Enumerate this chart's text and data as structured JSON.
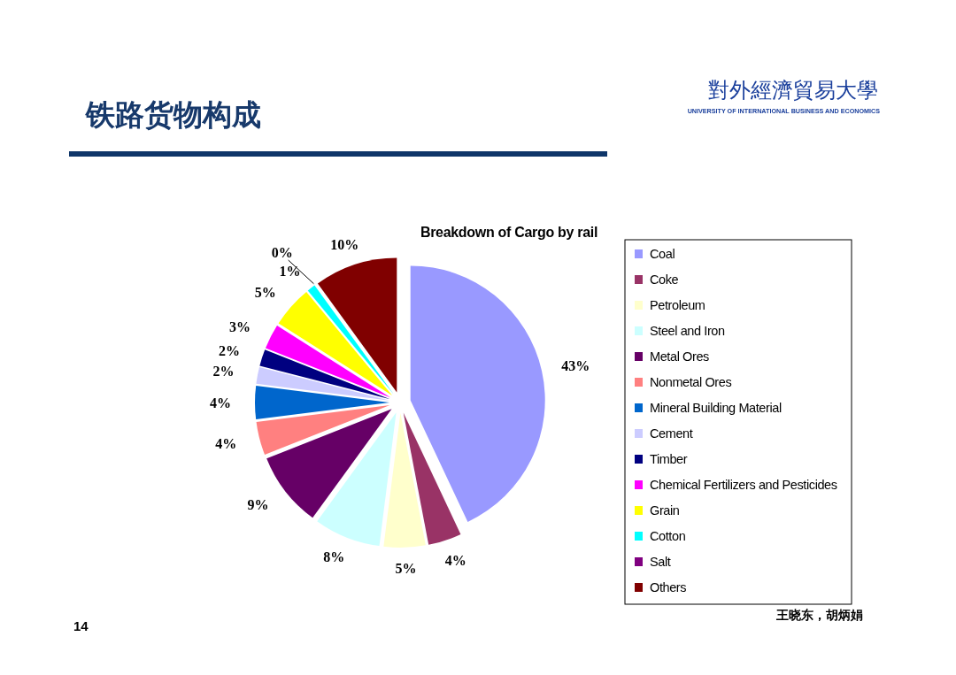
{
  "chart_data": {
    "type": "pie",
    "title": "铁路货物构成",
    "subtitle": "Breakdown of Cargo by rail",
    "categories": [
      "Coal",
      "Coke",
      "Petroleum",
      "Steel and Iron",
      "Metal Ores",
      "Nonmetal Ores",
      "Mineral Building Material",
      "Cement",
      "Timber",
      "Chemical Fertilizers and Pesticides",
      "Grain",
      "Cotton",
      "Salt",
      "Others"
    ],
    "values": [
      43,
      4,
      5,
      8,
      9,
      4,
      4,
      2,
      2,
      3,
      5,
      1,
      0,
      10
    ],
    "colors": [
      "#9999ff",
      "#993366",
      "#ffffcc",
      "#ccffff",
      "#660066",
      "#ff8080",
      "#0066cc",
      "#ccccff",
      "#000080",
      "#ff00ff",
      "#ffff00",
      "#00ffff",
      "#800080",
      "#800000"
    ],
    "value_labels": [
      "43%",
      "4%",
      "5%",
      "8%",
      "9%",
      "4%",
      "4%",
      "2%",
      "2%",
      "3%",
      "5%",
      "1%",
      "0%",
      "10%"
    ],
    "legend": "right",
    "annotations": [
      "14",
      "王晓东，胡炳娟",
      "對外經濟貿易大學",
      "UNIVERSITY OF INTERNATIONAL BUSINESS AND ECONOMICS"
    ]
  }
}
